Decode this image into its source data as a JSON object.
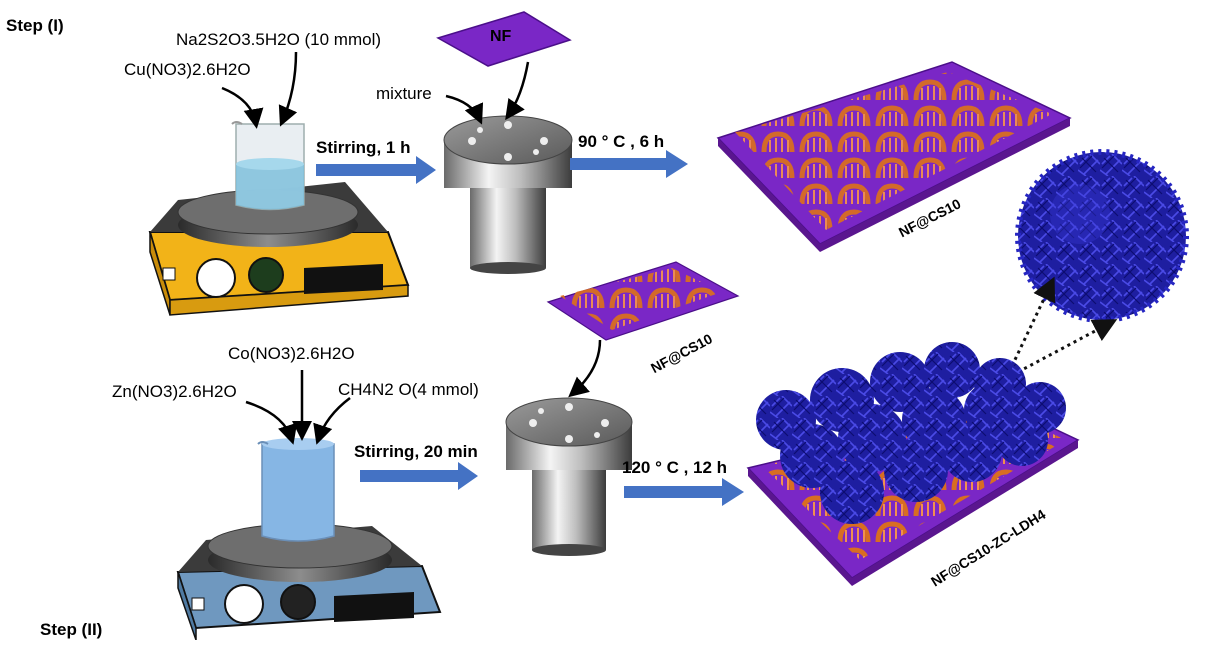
{
  "steps": {
    "step1": "Step (I)",
    "step2": "Step (II)"
  },
  "reagents": {
    "cu": "Cu(NO3)2.6H2O",
    "na": "Na2S2O3.5H2O (10 mmol)",
    "mixture": "mixture",
    "nf": "NF",
    "co": "Co(NO3)2.6H2O",
    "zn": "Zn(NO3)2.6H2O",
    "urea": "CH4N2 O(4 mmol)"
  },
  "conditions": {
    "stir1": "Stirring, 1 h",
    "heat1": "90 ° C , 6 h",
    "stir2": "Stirring, 20 min",
    "heat2": "120 ° C , 12 h"
  },
  "products": {
    "p1": "NF@CS10",
    "p1_small": "NF@CS10",
    "p2": "NF@CS10-ZC-LDH4"
  },
  "colors": {
    "arrow": "#4472c4",
    "stirrer1": "#f2b318",
    "stirrer2": "#6f98bf",
    "nickel_foam": "#7a27c6",
    "cuS": "#e07a2e",
    "ldh": "#1a1aa8"
  }
}
